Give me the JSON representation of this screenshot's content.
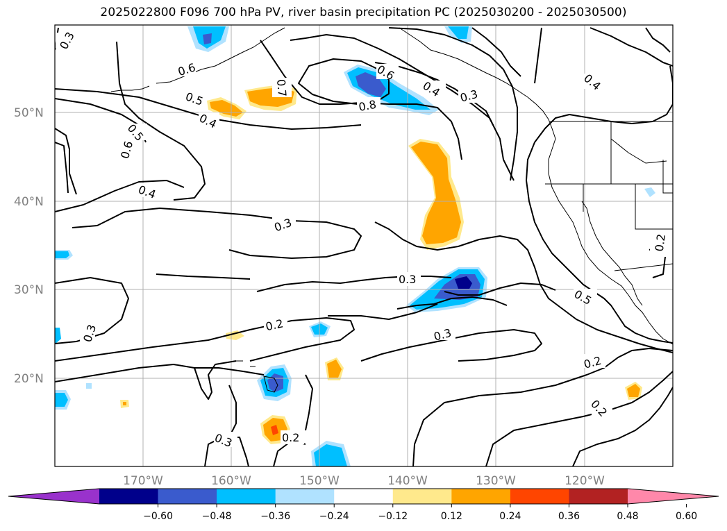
{
  "title": "2025022800 F096 700 hPa PV, river basin precipitation PC (2025030200 - 2025030500)",
  "lat_ticks": [
    "50°N",
    "40°N",
    "30°N",
    "20°N"
  ],
  "lon_ticks": [
    "170°W",
    "160°W",
    "150°W",
    "140°W",
    "130°W",
    "120°W"
  ],
  "colorbar": {
    "levels": [
      "−0.60",
      "−0.48",
      "−0.36",
      "−0.24",
      "−0.12",
      "0.12",
      "0.24",
      "0.36",
      "0.48",
      "0.60"
    ],
    "colors": [
      "#9932CC",
      "#00008B",
      "#3A5BCD",
      "#00BFFF",
      "#B0E2FF",
      "#FFFFFF",
      "#FFE98C",
      "#FFA500",
      "#FF4500",
      "#B22222",
      "#FF88AA"
    ]
  },
  "contour_labels": [
    {
      "text": "0.3",
      "name": "label-0-3-northwest"
    },
    {
      "text": "0.6",
      "name": "label-0-6-aleutian"
    },
    {
      "text": "0.5",
      "name": "label-0-5-north"
    },
    {
      "text": "0.4",
      "name": "label-0-4-north"
    },
    {
      "text": "0.5",
      "name": "label-0-5-west"
    },
    {
      "text": "0.6",
      "name": "label-0-6-west"
    },
    {
      "text": "0.4",
      "name": "label-0-4-west"
    },
    {
      "text": "0.7",
      "name": "label-0-7"
    },
    {
      "text": "0.8",
      "name": "label-0-8"
    },
    {
      "text": "0.6",
      "name": "label-0-6-gulf"
    },
    {
      "text": "0.4",
      "name": "label-0-4-gulf"
    },
    {
      "text": "0.3",
      "name": "label-0-3-gulf"
    },
    {
      "text": "0.4",
      "name": "label-0-4-canada"
    },
    {
      "text": "0.3",
      "name": "label-0-3-central"
    },
    {
      "text": "0.3",
      "name": "label-0-3-east-central"
    },
    {
      "text": "0.2",
      "name": "label-0-2-central"
    },
    {
      "text": "0.3",
      "name": "label-0-3-subtropical"
    },
    {
      "text": "0.3",
      "name": "label-0-3-far-west"
    },
    {
      "text": "0.5",
      "name": "label-0-5-california"
    },
    {
      "text": "0.2",
      "name": "label-0-2-east"
    },
    {
      "text": "0.2",
      "name": "label-0-2-southeast"
    },
    {
      "text": "0.2",
      "name": "label-0-2-nevada"
    },
    {
      "text": "0.3",
      "name": "label-0-3-south"
    },
    {
      "text": "0.2",
      "name": "label-0-2-south"
    }
  ]
}
